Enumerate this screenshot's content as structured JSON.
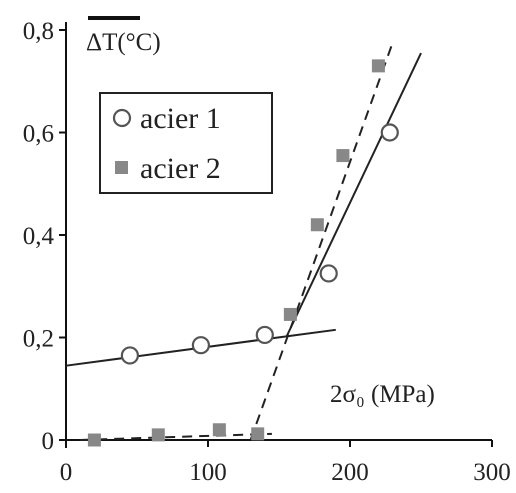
{
  "chart_data": {
    "type": "scatter",
    "ylabel": "ΔT(°C)",
    "xlabel": "2σ₀ (MPa)",
    "xlim": [
      0,
      300
    ],
    "ylim": [
      0,
      0.8
    ],
    "x_ticks": [
      "0",
      "100",
      "200",
      "300"
    ],
    "y_ticks": [
      "0",
      "0,2",
      "0,4",
      "0,6",
      "0,8"
    ],
    "legend_position": "top-left",
    "series": [
      {
        "name": "acier 1",
        "marker": "open-circle",
        "color": "#222222",
        "points": [
          [
            45,
            0.165
          ],
          [
            95,
            0.185
          ],
          [
            140,
            0.205
          ],
          [
            185,
            0.325
          ],
          [
            228,
            0.6
          ]
        ],
        "fit_lines": [
          {
            "style": "solid",
            "from": [
              0,
              0.145
            ],
            "to": [
              190,
              0.215
            ]
          },
          {
            "style": "solid",
            "from": [
              155,
              0.2
            ],
            "to": [
              250,
              0.755
            ]
          }
        ]
      },
      {
        "name": "acier 2",
        "marker": "filled-square",
        "color": "#888888",
        "points": [
          [
            20,
            0.0
          ],
          [
            65,
            0.01
          ],
          [
            108,
            0.02
          ],
          [
            135,
            0.012
          ],
          [
            158,
            0.245
          ],
          [
            177,
            0.42
          ],
          [
            195,
            0.555
          ],
          [
            220,
            0.73
          ]
        ],
        "fit_lines": [
          {
            "style": "dashed",
            "from": [
              10,
              0.0
            ],
            "to": [
              145,
              0.012
            ]
          },
          {
            "style": "dashed",
            "from": [
              130,
              0.0
            ],
            "to": [
              230,
              0.775
            ]
          }
        ]
      }
    ]
  }
}
